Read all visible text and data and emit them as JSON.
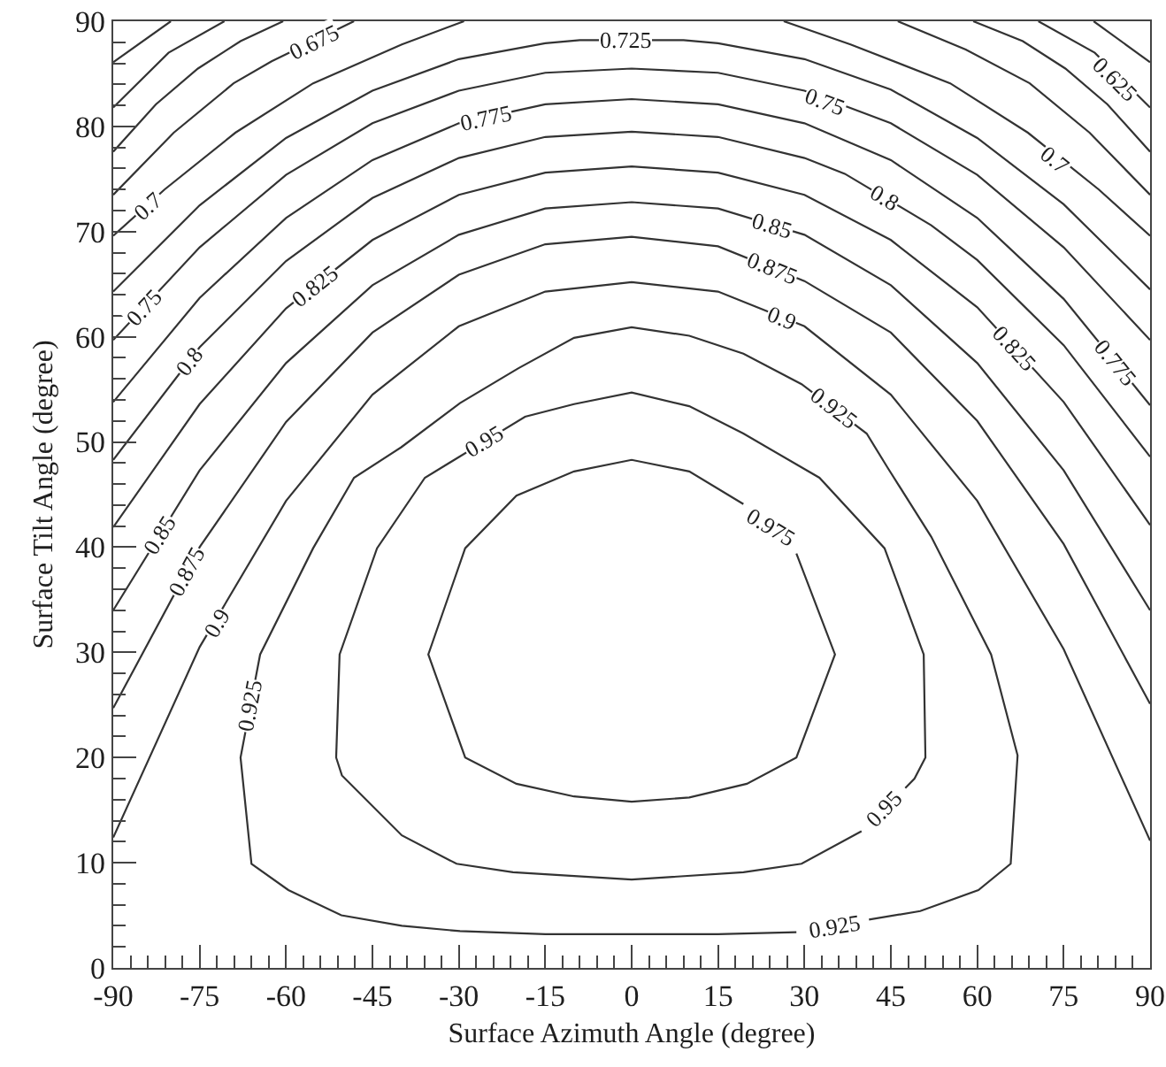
{
  "chart_data": {
    "type": "line",
    "xlabel": "Surface Azimuth Angle (degree)",
    "ylabel": "Surface Tilt Angle (degree)",
    "xlim": [
      -90,
      90
    ],
    "ylim": [
      0,
      90
    ],
    "xticks": [
      -90,
      -75,
      -60,
      -45,
      -30,
      -15,
      0,
      15,
      30,
      45,
      60,
      75,
      90,
      {
        "value": -87,
        "label": null
      },
      {
        "value": -84,
        "label": null
      },
      {
        "value": -81,
        "label": null
      },
      {
        "value": -78,
        "label": null
      },
      {
        "value": -72,
        "label": null
      },
      {
        "value": -69,
        "label": null
      },
      {
        "value": -66,
        "label": null
      },
      {
        "value": -63,
        "label": null
      },
      {
        "value": -57,
        "label": null
      },
      {
        "value": -54,
        "label": null
      },
      {
        "value": -51,
        "label": null
      },
      {
        "value": -48,
        "label": null
      },
      {
        "value": -42,
        "label": null
      },
      {
        "value": -39,
        "label": null
      },
      {
        "value": -36,
        "label": null
      },
      {
        "value": -33,
        "label": null
      },
      {
        "value": -27,
        "label": null
      },
      {
        "value": -24,
        "label": null
      },
      {
        "value": -21,
        "label": null
      },
      {
        "value": -18,
        "label": null
      },
      {
        "value": -12,
        "label": null
      },
      {
        "value": -9,
        "label": null
      },
      {
        "value": -6,
        "label": null
      },
      {
        "value": -3,
        "label": null
      },
      {
        "value": 3,
        "label": null
      },
      {
        "value": 6,
        "label": null
      },
      {
        "value": 9,
        "label": null
      },
      {
        "value": 12,
        "label": null
      },
      {
        "value": 18,
        "label": null
      },
      {
        "value": 21,
        "label": null
      },
      {
        "value": 24,
        "label": null
      },
      {
        "value": 27,
        "label": null
      },
      {
        "value": 33,
        "label": null
      },
      {
        "value": 36,
        "label": null
      },
      {
        "value": 39,
        "label": null
      },
      {
        "value": 42,
        "label": null
      },
      {
        "value": 48,
        "label": null
      },
      {
        "value": 51,
        "label": null
      },
      {
        "value": 54,
        "label": null
      },
      {
        "value": 57,
        "label": null
      },
      {
        "value": 63,
        "label": null
      },
      {
        "value": 66,
        "label": null
      },
      {
        "value": 69,
        "label": null
      },
      {
        "value": 72,
        "label": null
      },
      {
        "value": 78,
        "label": null
      },
      {
        "value": 81,
        "label": null
      },
      {
        "value": 84,
        "label": null
      },
      {
        "value": 87,
        "label": null
      }
    ],
    "yticks": [
      0,
      10,
      20,
      30,
      40,
      50,
      60,
      70,
      80,
      90,
      {
        "value": 2,
        "label": null
      },
      {
        "value": 4,
        "label": null
      },
      {
        "value": 6,
        "label": null
      },
      {
        "value": 8,
        "label": null
      },
      {
        "value": 12,
        "label": null
      },
      {
        "value": 14,
        "label": null
      },
      {
        "value": 16,
        "label": null
      },
      {
        "value": 18,
        "label": null
      },
      {
        "value": 22,
        "label": null
      },
      {
        "value": 24,
        "label": null
      },
      {
        "value": 26,
        "label": null
      },
      {
        "value": 28,
        "label": null
      },
      {
        "value": 32,
        "label": null
      },
      {
        "value": 34,
        "label": null
      },
      {
        "value": 36,
        "label": null
      },
      {
        "value": 38,
        "label": null
      },
      {
        "value": 42,
        "label": null
      },
      {
        "value": 44,
        "label": null
      },
      {
        "value": 46,
        "label": null
      },
      {
        "value": 48,
        "label": null
      },
      {
        "value": 52,
        "label": null
      },
      {
        "value": 54,
        "label": null
      },
      {
        "value": 56,
        "label": null
      },
      {
        "value": 58,
        "label": null
      },
      {
        "value": 62,
        "label": null
      },
      {
        "value": 64,
        "label": null
      },
      {
        "value": 66,
        "label": null
      },
      {
        "value": 68,
        "label": null
      },
      {
        "value": 72,
        "label": null
      },
      {
        "value": 74,
        "label": null
      },
      {
        "value": 76,
        "label": null
      },
      {
        "value": 78,
        "label": null
      },
      {
        "value": 82,
        "label": null
      },
      {
        "value": 84,
        "label": null
      },
      {
        "value": 86,
        "label": null
      },
      {
        "value": 88,
        "label": null
      }
    ],
    "series": [
      {
        "color": "#333333",
        "x": [
          -90,
          -80
        ],
        "values": [
          86.1,
          90
        ]
      },
      {
        "color": "#333333",
        "x": [
          -90,
          -80.4,
          -70.7
        ],
        "values": [
          81.8,
          87.0,
          90
        ]
      },
      {
        "color": "#333333",
        "x": [
          -90,
          -82.6,
          -75.3,
          -67.9,
          -60.5
        ],
        "values": [
          77.6,
          82.1,
          85.5,
          88.1,
          90
        ]
      },
      {
        "color": "#333333",
        "x": [
          -90,
          -79.5,
          -69.1,
          -62.5,
          -48.2
        ],
        "values": [
          73.5,
          79.4,
          84.1,
          86.2,
          90
        ]
      },
      {
        "color": "#333333",
        "x": [
          -90,
          -81.1,
          -68.8,
          -55.3,
          -39.9,
          -29.1
        ],
        "values": [
          69.6,
          74.0,
          79.4,
          84.1,
          87.8,
          90
        ]
      },
      {
        "color": "#333333",
        "x": [
          26.4,
          38,
          55.3,
          68.8,
          81.1,
          90
        ],
        "values": [
          90,
          87.8,
          84.1,
          79.4,
          74.0,
          69.6
        ]
      },
      {
        "color": "#333333",
        "x": [
          46.2,
          58,
          69.1,
          79.5,
          90
        ],
        "values": [
          90,
          87.3,
          84.1,
          79.4,
          73.5
        ]
      },
      {
        "color": "#333333",
        "x": [
          59.3,
          67.9,
          75.3,
          82.6,
          90
        ],
        "values": [
          90,
          88.1,
          85.5,
          82.1,
          77.6
        ]
      },
      {
        "color": "#333333",
        "x": [
          70.6,
          80.4,
          90
        ],
        "values": [
          90,
          87.0,
          81.8
        ]
      },
      {
        "color": "#333333",
        "x": [
          80.2,
          90
        ],
        "values": [
          90,
          86.1
        ]
      },
      {
        "color": "#333333",
        "x": [
          -90,
          -75,
          -60,
          -45,
          -30,
          -15,
          -9,
          9,
          15,
          30,
          45,
          60,
          75,
          90
        ],
        "values": [
          64.3,
          72.5,
          78.9,
          83.4,
          86.4,
          87.9,
          88.2,
          88.2,
          87.9,
          86.4,
          83.5,
          78.9,
          72.6,
          64.5
        ]
      },
      {
        "color": "#333333",
        "x": [
          -90,
          -75,
          -60,
          -45,
          -30,
          -15,
          0,
          15,
          30,
          45,
          60,
          75,
          90
        ],
        "values": [
          59.7,
          68.5,
          75.4,
          80.3,
          83.4,
          85.1,
          85.5,
          85.1,
          83.4,
          80.3,
          75.4,
          68.5,
          59.7
        ]
      },
      {
        "color": "#333333",
        "x": [
          -90,
          -75,
          -60,
          -45,
          -30,
          -15,
          0,
          15,
          30,
          45,
          60,
          75,
          90
        ],
        "values": [
          53.8,
          63.7,
          71.3,
          76.8,
          80.3,
          82.1,
          82.6,
          82.1,
          80.3,
          76.8,
          71.3,
          63.6,
          53.5
        ]
      },
      {
        "color": "#333333",
        "x": [
          -90,
          -75,
          -60,
          -45,
          -30,
          -15,
          0,
          15,
          30,
          37,
          52,
          60,
          75,
          90
        ],
        "values": [
          48.3,
          59.0,
          67.2,
          73.2,
          77.0,
          79.0,
          79.5,
          79.0,
          77.0,
          75.5,
          70.6,
          67.3,
          59.2,
          48.6
        ]
      },
      {
        "color": "#333333",
        "x": [
          -90,
          -75,
          -60,
          -45,
          -30,
          -15,
          0,
          15,
          30,
          45,
          60,
          75,
          90
        ],
        "values": [
          41.9,
          53.6,
          62.7,
          69.2,
          73.5,
          75.6,
          76.2,
          75.6,
          73.5,
          69.2,
          62.8,
          53.8,
          42.1
        ]
      },
      {
        "color": "#333333",
        "x": [
          -90,
          -75,
          -60,
          -45,
          -30,
          -15,
          0,
          15,
          30,
          45,
          60,
          75,
          90
        ],
        "values": [
          34.0,
          47.3,
          57.5,
          64.9,
          69.7,
          72.2,
          72.8,
          72.2,
          69.7,
          64.9,
          57.5,
          47.3,
          34.0
        ]
      },
      {
        "color": "#333333",
        "x": [
          -90,
          -75,
          -60,
          -45,
          -30,
          -15,
          0,
          15,
          30,
          45,
          60,
          75,
          90
        ],
        "values": [
          24.7,
          40.0,
          51.9,
          60.4,
          65.9,
          68.8,
          69.5,
          68.6,
          65.3,
          60.4,
          52.0,
          40.3,
          25.1
        ]
      },
      {
        "color": "#333333",
        "x": [
          -90,
          -75,
          -60,
          -45,
          -30,
          -15,
          0,
          15,
          30,
          45,
          60,
          75,
          90
        ],
        "values": [
          12.4,
          30.5,
          44.4,
          54.5,
          61.0,
          64.3,
          65.2,
          64.3,
          61.0,
          54.5,
          44.4,
          30.3,
          12.1
        ]
      },
      {
        "color": "#333333",
        "x": [
          41.2,
          50.1,
          60.2,
          65.8,
          67,
          62.4,
          52,
          44.5,
          40.8,
          29.5,
          19.4,
          10,
          0,
          -10,
          -19.7,
          -29.8,
          -40,
          -48.2,
          -55.3,
          -64.5,
          -67.9,
          -66,
          -59.6,
          -50.4,
          -39.9,
          -29.8,
          -15,
          0,
          15,
          28.6
        ],
        "values": [
          4.6,
          5.4,
          7.4,
          9.9,
          20.2,
          29.8,
          41,
          47.5,
          50.8,
          55.5,
          58.4,
          60.1,
          60.9,
          59.9,
          57,
          53.7,
          49.5,
          46.6,
          39.9,
          29.8,
          20,
          9.9,
          7.4,
          5,
          4,
          3.5,
          3.2,
          3.2,
          3.2,
          3.4
        ]
      },
      {
        "color": "#333333",
        "x": [
          47.5,
          49.1,
          51,
          50.7,
          43.9,
          32.6,
          19.4,
          10,
          0,
          -10,
          -18.5,
          -35.9,
          -44.2,
          -50.7,
          -51.3,
          -50.3,
          -39.9,
          -30.4,
          -20.6,
          0,
          19.4,
          29.5,
          39.9
        ],
        "values": [
          17.1,
          18,
          20,
          29.8,
          39.9,
          46.6,
          50.8,
          53.4,
          54.7,
          53.6,
          52.4,
          46.6,
          39.9,
          29.8,
          20,
          18.3,
          12.6,
          9.9,
          9.1,
          8.4,
          9.1,
          9.9,
          13
        ]
      },
      {
        "color": "#333333",
        "x": [
          28.6,
          35.3,
          28.6,
          20,
          10,
          0,
          -10,
          -20,
          -28.9,
          -35.3,
          -28.9,
          -20,
          -10,
          0,
          10,
          19.4
        ],
        "values": [
          39.4,
          29.8,
          20,
          17.5,
          16.2,
          15.8,
          16.3,
          17.5,
          20,
          29.8,
          39.9,
          44.9,
          47.2,
          48.3,
          47.2,
          44.1
        ]
      }
    ],
    "annotations": [
      {
        "text": "0.725",
        "x": -1,
        "y": 88.3
      },
      {
        "text": "0.675",
        "x": -55,
        "y": 88.0
      },
      {
        "text": "0.775",
        "x": -25.2,
        "y": 80.8
      },
      {
        "text": "0.75",
        "x": 33.7,
        "y": 82.4
      },
      {
        "text": "0.7",
        "x": -84.1,
        "y": 72.5
      },
      {
        "text": "0.8",
        "x": 43.9,
        "y": 73.3
      },
      {
        "text": "0.75",
        "x": -84.6,
        "y": 62.8
      },
      {
        "text": "0.825",
        "x": -55,
        "y": 64.9
      },
      {
        "text": "0.85",
        "x": 24.5,
        "y": 70.6
      },
      {
        "text": "0.875",
        "x": 24.5,
        "y": 66.6
      },
      {
        "text": "0.9",
        "x": 26,
        "y": 61.9
      },
      {
        "text": "0.8",
        "x": -76.9,
        "y": 57.6
      },
      {
        "text": "0.95",
        "x": -25.8,
        "y": 50.1
      },
      {
        "text": "0.925",
        "x": 35.2,
        "y": 53.3
      },
      {
        "text": "0.825",
        "x": 66.4,
        "y": 59.0
      },
      {
        "text": "0.775",
        "x": 83.9,
        "y": 57.6
      },
      {
        "text": "0.7",
        "x": 73.6,
        "y": 76.8
      },
      {
        "text": "0.625",
        "x": 83.9,
        "y": 84.6
      },
      {
        "text": "0.85",
        "x": -82,
        "y": 41.1
      },
      {
        "text": "0.875",
        "x": -77.4,
        "y": 37.6
      },
      {
        "text": "0.9",
        "x": -72.2,
        "y": 32.8
      },
      {
        "text": "0.925",
        "x": -66.2,
        "y": 24.9
      },
      {
        "text": "0.975",
        "x": 24.0,
        "y": 41.9
      },
      {
        "text": "0.95",
        "x": 43.9,
        "y": 15.2
      },
      {
        "text": "0.925",
        "x": 35.2,
        "y": 4.0
      }
    ]
  }
}
